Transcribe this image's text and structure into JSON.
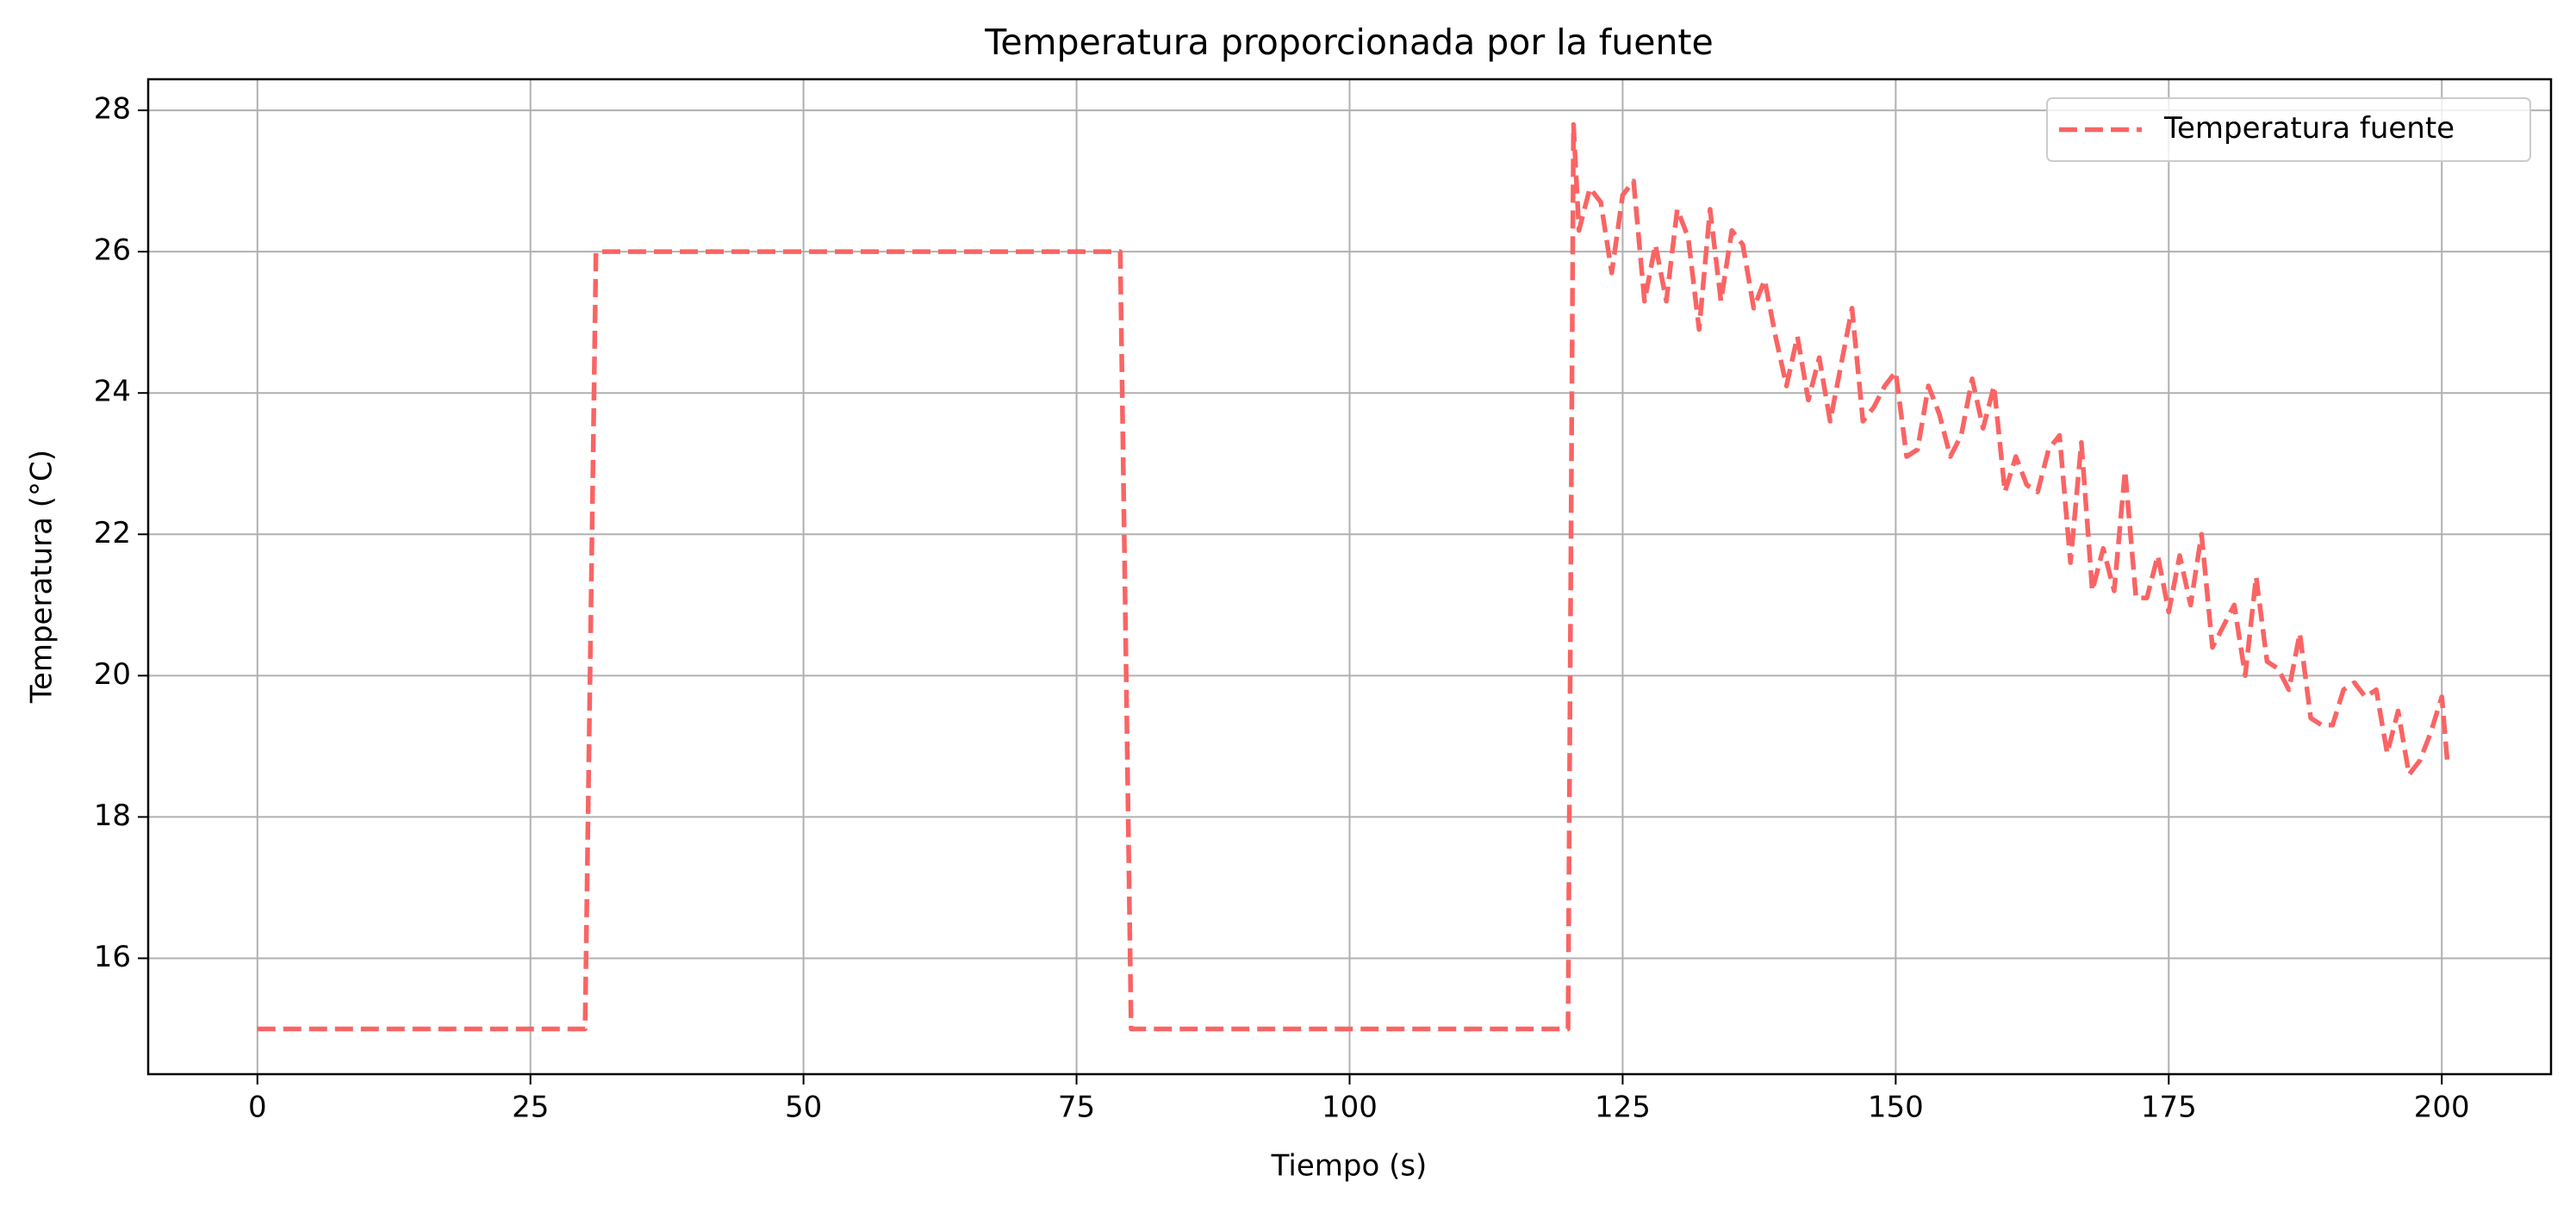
{
  "chart_data": {
    "type": "line",
    "title": "Temperatura proporcionada por la fuente",
    "x_label": "Tiempo (s)",
    "y_label": "Temperatura (°C)",
    "xlim": [
      -10,
      210
    ],
    "xticks": [
      0,
      25,
      50,
      75,
      100,
      125,
      150,
      175,
      200
    ],
    "ylim": [
      14.36,
      28.44
    ],
    "yticks": [
      16,
      18,
      20,
      22,
      24,
      26,
      28
    ],
    "grid": true,
    "legend": "upper right",
    "x": [
      0,
      30,
      31,
      79,
      80,
      120,
      120.5,
      121,
      122,
      123,
      124,
      125,
      126,
      127,
      128,
      129,
      130,
      131,
      132,
      133,
      134,
      135,
      136,
      137,
      138,
      139,
      140,
      141,
      142,
      143,
      144,
      145,
      146,
      147,
      148,
      149,
      150,
      151,
      152,
      153,
      154,
      155,
      156,
      157,
      158,
      159,
      160,
      161,
      162,
      163,
      164,
      165,
      166,
      167,
      168,
      169,
      170,
      171,
      172,
      173,
      174,
      175,
      176,
      177,
      178,
      179,
      180,
      181,
      182,
      183,
      184,
      185,
      186,
      187,
      188,
      189,
      190,
      191,
      192,
      193,
      194,
      195,
      196,
      197,
      198,
      199,
      200,
      200.5
    ],
    "series": [
      {
        "name": "Temperatura fuente",
        "color": "#fa6464",
        "values": [
          15,
          15,
          26,
          26,
          15,
          15,
          27.8,
          26.3,
          26.9,
          26.7,
          25.7,
          26.8,
          27.0,
          25.3,
          26.1,
          25.3,
          26.6,
          26.2,
          24.9,
          26.6,
          25.3,
          26.3,
          26.1,
          25.2,
          25.6,
          24.8,
          24.1,
          24.8,
          23.9,
          24.5,
          23.6,
          24.4,
          25.2,
          23.6,
          23.8,
          24.1,
          24.3,
          23.1,
          23.2,
          24.1,
          23.7,
          23.1,
          23.4,
          24.2,
          23.5,
          24.1,
          22.6,
          23.1,
          22.7,
          22.6,
          23.2,
          23.4,
          21.6,
          23.3,
          21.2,
          21.8,
          21.2,
          22.9,
          21.1,
          21.1,
          21.7,
          20.9,
          21.7,
          21.0,
          22.0,
          20.4,
          20.7,
          21.0,
          20.0,
          21.4,
          20.2,
          20.1,
          19.8,
          20.6,
          19.4,
          19.3,
          19.3,
          19.8,
          19.9,
          19.7,
          19.8,
          18.9,
          19.5,
          18.6,
          18.8,
          19.2,
          19.7,
          18.8
        ]
      }
    ]
  }
}
